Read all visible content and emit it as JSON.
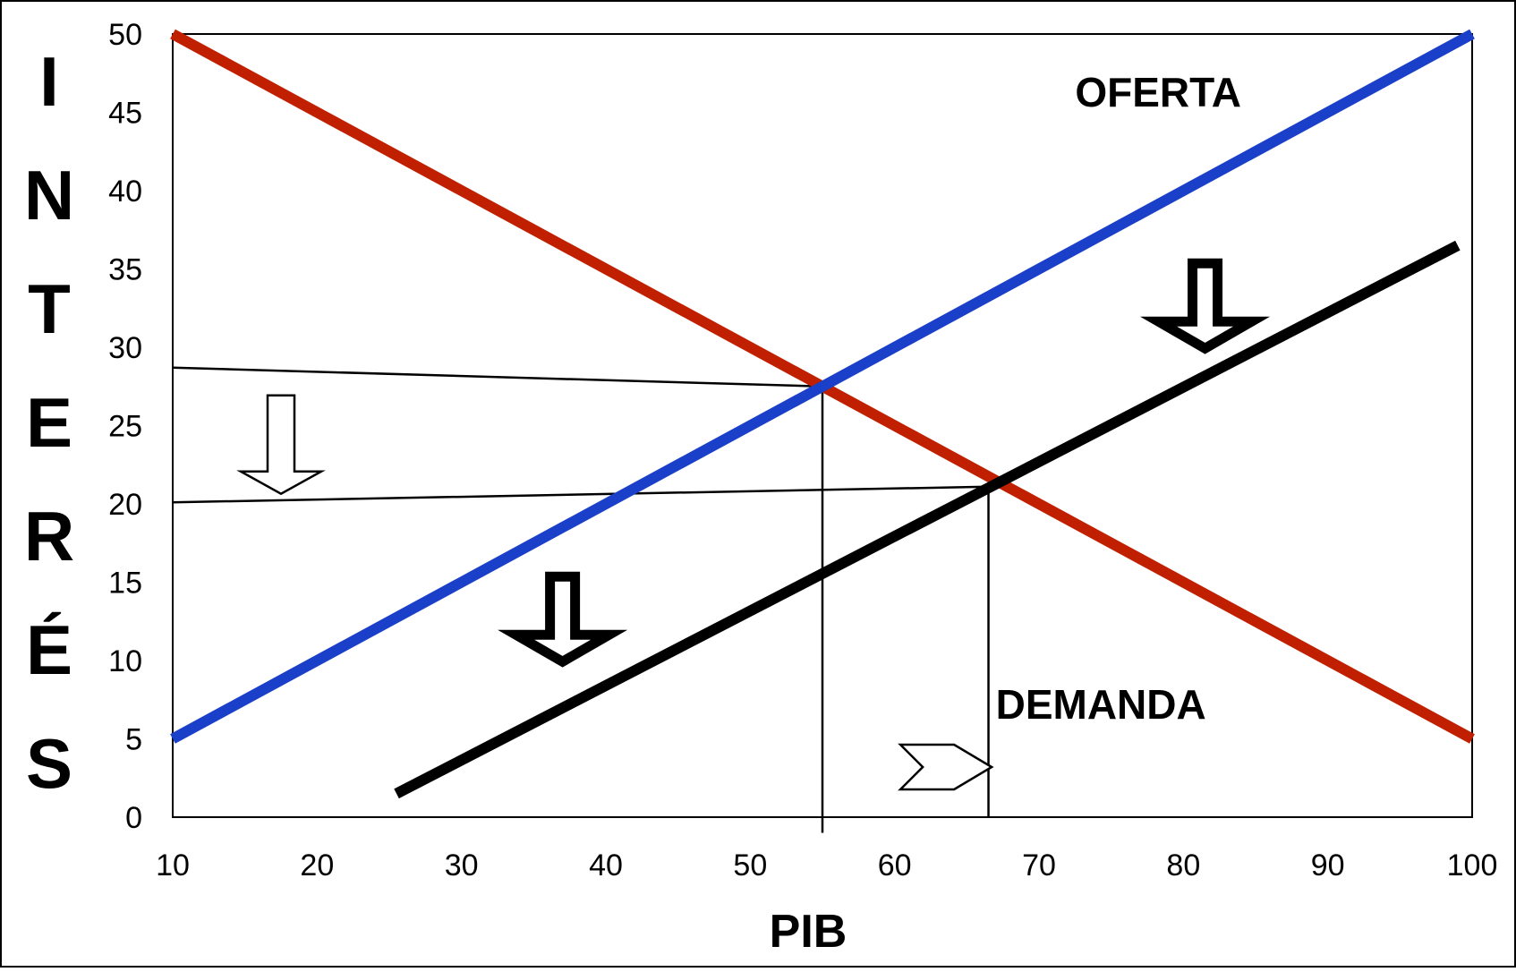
{
  "chart_data": {
    "type": "line",
    "xlabel": "PIB",
    "ylabel": "INTERÉS",
    "ylabel_letters": [
      "I",
      "N",
      "T",
      "E",
      "R",
      "É",
      "S"
    ],
    "xlim": [
      10,
      100
    ],
    "ylim": [
      0,
      50
    ],
    "x_ticks": [
      10,
      20,
      30,
      40,
      50,
      60,
      70,
      80,
      90,
      100
    ],
    "y_ticks": [
      0,
      5,
      10,
      15,
      20,
      25,
      30,
      35,
      40,
      45,
      50
    ],
    "grid": false,
    "series": [
      {
        "name": "DEMANDA",
        "color": "#c02000",
        "points": [
          [
            10,
            50
          ],
          [
            100,
            5
          ]
        ]
      },
      {
        "name": "OFERTA",
        "color": "#1a3fc8",
        "points": [
          [
            10,
            5
          ],
          [
            100,
            50
          ]
        ]
      },
      {
        "name": "",
        "color": "#000000",
        "points": [
          [
            25.5,
            1.5
          ],
          [
            99,
            36.5
          ]
        ]
      }
    ],
    "reference_lines": [
      {
        "from": [
          10,
          28.7
        ],
        "to": [
          55,
          27.5
        ]
      },
      {
        "from": [
          10,
          20.1
        ],
        "to": [
          66.5,
          21.1
        ]
      },
      {
        "from": [
          55,
          27.5
        ],
        "to": [
          55,
          -1
        ]
      },
      {
        "from": [
          66.5,
          21.1
        ],
        "to": [
          66.5,
          0
        ]
      }
    ],
    "annotations": [
      {
        "text": "OFERTA",
        "x": 72.5,
        "y": 46.3
      },
      {
        "text": "DEMANDA",
        "x": 67,
        "y": 7.2
      }
    ],
    "arrows": [
      {
        "kind": "down",
        "style": "outline",
        "x": 17.5,
        "y": 23.5
      },
      {
        "kind": "down",
        "style": "bold",
        "x": 37,
        "y": 12.5
      },
      {
        "kind": "down",
        "style": "bold",
        "x": 81.5,
        "y": 32.5
      },
      {
        "kind": "right",
        "style": "outline",
        "x": 63.5,
        "y": 3.2
      }
    ]
  }
}
